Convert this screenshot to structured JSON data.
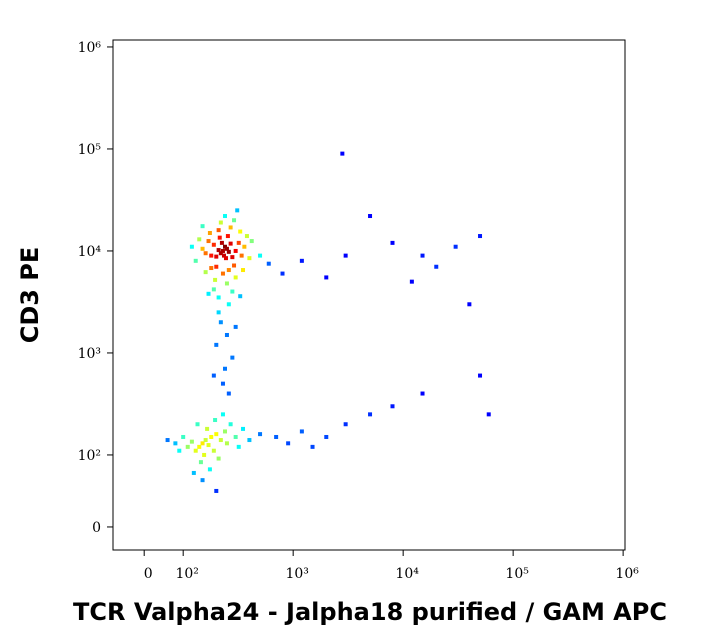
{
  "chart_data": {
    "type": "scatter",
    "x_label": "TCR Valpha24 - Jalpha18 purified / GAM APC",
    "y_label": "CD3 PE",
    "x": [
      230,
      220,
      240,
      250,
      210,
      235,
      225,
      260,
      200,
      245,
      190,
      270,
      180,
      280,
      215,
      255,
      170,
      300,
      160,
      320,
      200,
      260,
      230,
      180,
      290,
      150,
      340,
      210,
      270,
      175,
      330,
      140,
      360,
      195,
      250,
      300,
      160,
      220,
      290,
      150,
      380,
      130,
      400,
      240,
      190,
      280,
      350,
      120,
      420,
      310,
      210,
      260,
      170,
      330,
      500,
      600,
      800,
      1200,
      2000,
      3000,
      8000,
      15000,
      30000,
      50000,
      20000,
      5000,
      12000,
      2800,
      40000,
      220,
      250,
      200,
      280,
      240,
      190,
      300,
      230,
      260,
      210,
      150,
      140,
      160,
      170,
      130,
      180,
      155,
      120,
      200,
      145,
      110,
      190,
      220,
      100,
      165,
      135,
      240,
      90,
      210,
      250,
      175,
      125,
      270,
      80,
      300,
      195,
      150,
      230,
      60,
      320,
      350,
      400,
      500,
      700,
      900,
      1200,
      1500,
      2000,
      3000,
      5000,
      8000,
      15000,
      50000,
      60000,
      200
    ],
    "y": [
      10000,
      9500,
      11000,
      10500,
      10200,
      9000,
      12000,
      9800,
      8800,
      8500,
      11500,
      11800,
      9000,
      8700,
      13500,
      14000,
      12500,
      10000,
      9500,
      12000,
      7000,
      6500,
      6000,
      6800,
      7200,
      10500,
      9000,
      16000,
      17000,
      15000,
      15500,
      13000,
      11000,
      5200,
      4800,
      5500,
      6200,
      19000,
      20000,
      17500,
      14000,
      8000,
      8500,
      22000,
      4200,
      4000,
      6500,
      11000,
      12500,
      25000,
      3500,
      3000,
      3800,
      3600,
      9000,
      7500,
      6000,
      8000,
      5500,
      9000,
      12000,
      9000,
      11000,
      14000,
      7000,
      22000,
      5000,
      90000,
      3000,
      2000,
      1500,
      1200,
      900,
      700,
      600,
      1800,
      500,
      400,
      2500,
      130,
      120,
      140,
      125,
      110,
      150,
      100,
      135,
      160,
      90,
      120,
      110,
      140,
      150,
      180,
      200,
      170,
      110,
      95,
      130,
      80,
      75,
      200,
      130,
      150,
      220,
      65,
      250,
      140,
      120,
      180,
      140,
      160,
      150,
      130,
      170,
      120,
      150,
      200,
      250,
      300,
      400,
      600,
      250,
      50
    ],
    "xlim": [
      -80,
      1040000
    ],
    "ylim": [
      -32,
      1170000
    ],
    "xticks": [
      0,
      {
        "value": 100,
        "label": "10²"
      },
      {
        "value": 1000,
        "label": "10³"
      },
      {
        "value": 10000,
        "label": "10⁴"
      },
      {
        "value": 100000,
        "label": "10⁵"
      },
      {
        "value": 1000000,
        "label": "10⁶"
      }
    ],
    "yticks": [
      0,
      {
        "value": 100,
        "label": "10²"
      },
      {
        "value": 1000,
        "label": "10³"
      },
      {
        "value": 10000,
        "label": "10⁴"
      },
      {
        "value": 100000,
        "label": "10⁵"
      },
      {
        "value": 1000000,
        "label": "10⁶"
      }
    ],
    "scale": "biexponential"
  }
}
